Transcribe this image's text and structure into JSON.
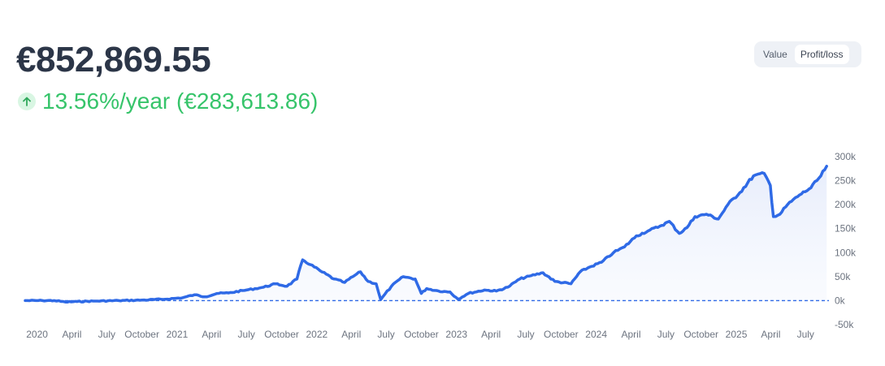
{
  "portfolio": {
    "total_value": "€852,869.55",
    "annual_return": "13.56%/year (€283,613.86)"
  },
  "view_toggle": {
    "options": [
      "Value",
      "Profit/loss"
    ],
    "selected": "Profit/loss"
  },
  "colors": {
    "line": "#2f6ae6",
    "positive": "#36c46a",
    "zero_line": "#2f6ae6"
  },
  "chart_data": {
    "type": "area",
    "title": "",
    "xlabel": "",
    "ylabel": "",
    "x_tick_labels": [
      "2020",
      "April",
      "July",
      "October",
      "2021",
      "April",
      "July",
      "October",
      "2022",
      "April",
      "July",
      "October",
      "2023",
      "April",
      "July",
      "October",
      "2024",
      "April",
      "July",
      "October",
      "2025",
      "April",
      "July"
    ],
    "y_tick_labels": [
      "300k",
      "250k",
      "200k",
      "150k",
      "100k",
      "50k",
      "0k",
      "-50k"
    ],
    "y_ticks": [
      300000,
      250000,
      200000,
      150000,
      100000,
      50000,
      0,
      -50000
    ],
    "ylim": [
      -50000,
      300000
    ],
    "xlim": [
      "2019-12-01",
      "2025-08-31"
    ],
    "reference_line": {
      "y": 0,
      "style": "dashed"
    },
    "series": [
      {
        "x": [
          "2019-12-01",
          "2020-01-15",
          "2020-02-15",
          "2020-03-15",
          "2020-04-15",
          "2020-06-01",
          "2020-08-01",
          "2020-10-01",
          "2020-12-01",
          "2021-01-15",
          "2021-02-15",
          "2021-03-15",
          "2021-04-15",
          "2021-05-15",
          "2021-07-01",
          "2021-08-15",
          "2021-09-15",
          "2021-10-15",
          "2021-11-10",
          "2021-11-25",
          "2021-12-15",
          "2022-01-10",
          "2022-02-15",
          "2022-03-15",
          "2022-04-05",
          "2022-04-25",
          "2022-05-15",
          "2022-06-05",
          "2022-06-17",
          "2022-07-15",
          "2022-08-15",
          "2022-09-15",
          "2022-10-01",
          "2022-10-15",
          "2022-11-15",
          "2022-12-15",
          "2023-01-05",
          "2023-02-01",
          "2023-03-15",
          "2023-04-15",
          "2023-05-15",
          "2023-06-15",
          "2023-07-15",
          "2023-08-15",
          "2023-09-15",
          "2023-10-27",
          "2023-11-20",
          "2023-12-15",
          "2024-01-15",
          "2024-02-15",
          "2024-03-15",
          "2024-04-15",
          "2024-05-15",
          "2024-06-15",
          "2024-07-10",
          "2024-08-05",
          "2024-08-25",
          "2024-09-15",
          "2024-10-15",
          "2024-11-15",
          "2024-12-10",
          "2025-01-10",
          "2025-02-15",
          "2025-03-15",
          "2025-03-31",
          "2025-04-08",
          "2025-04-25",
          "2025-05-15",
          "2025-06-15",
          "2025-07-15",
          "2025-08-10",
          "2025-08-25"
        ],
        "y": [
          0,
          0,
          0,
          -3000,
          -2000,
          -1000,
          0,
          1000,
          3000,
          6000,
          12000,
          8000,
          15000,
          16000,
          22000,
          28000,
          35000,
          30000,
          45000,
          85000,
          75000,
          62000,
          45000,
          38000,
          50000,
          60000,
          40000,
          35000,
          2000,
          30000,
          50000,
          45000,
          15000,
          25000,
          20000,
          18000,
          3000,
          15000,
          22000,
          20000,
          28000,
          45000,
          52000,
          58000,
          40000,
          35000,
          60000,
          70000,
          80000,
          100000,
          112000,
          135000,
          145000,
          155000,
          165000,
          140000,
          152000,
          175000,
          180000,
          170000,
          200000,
          225000,
          260000,
          265000,
          240000,
          175000,
          180000,
          200000,
          220000,
          235000,
          260000,
          280000
        ]
      }
    ]
  }
}
